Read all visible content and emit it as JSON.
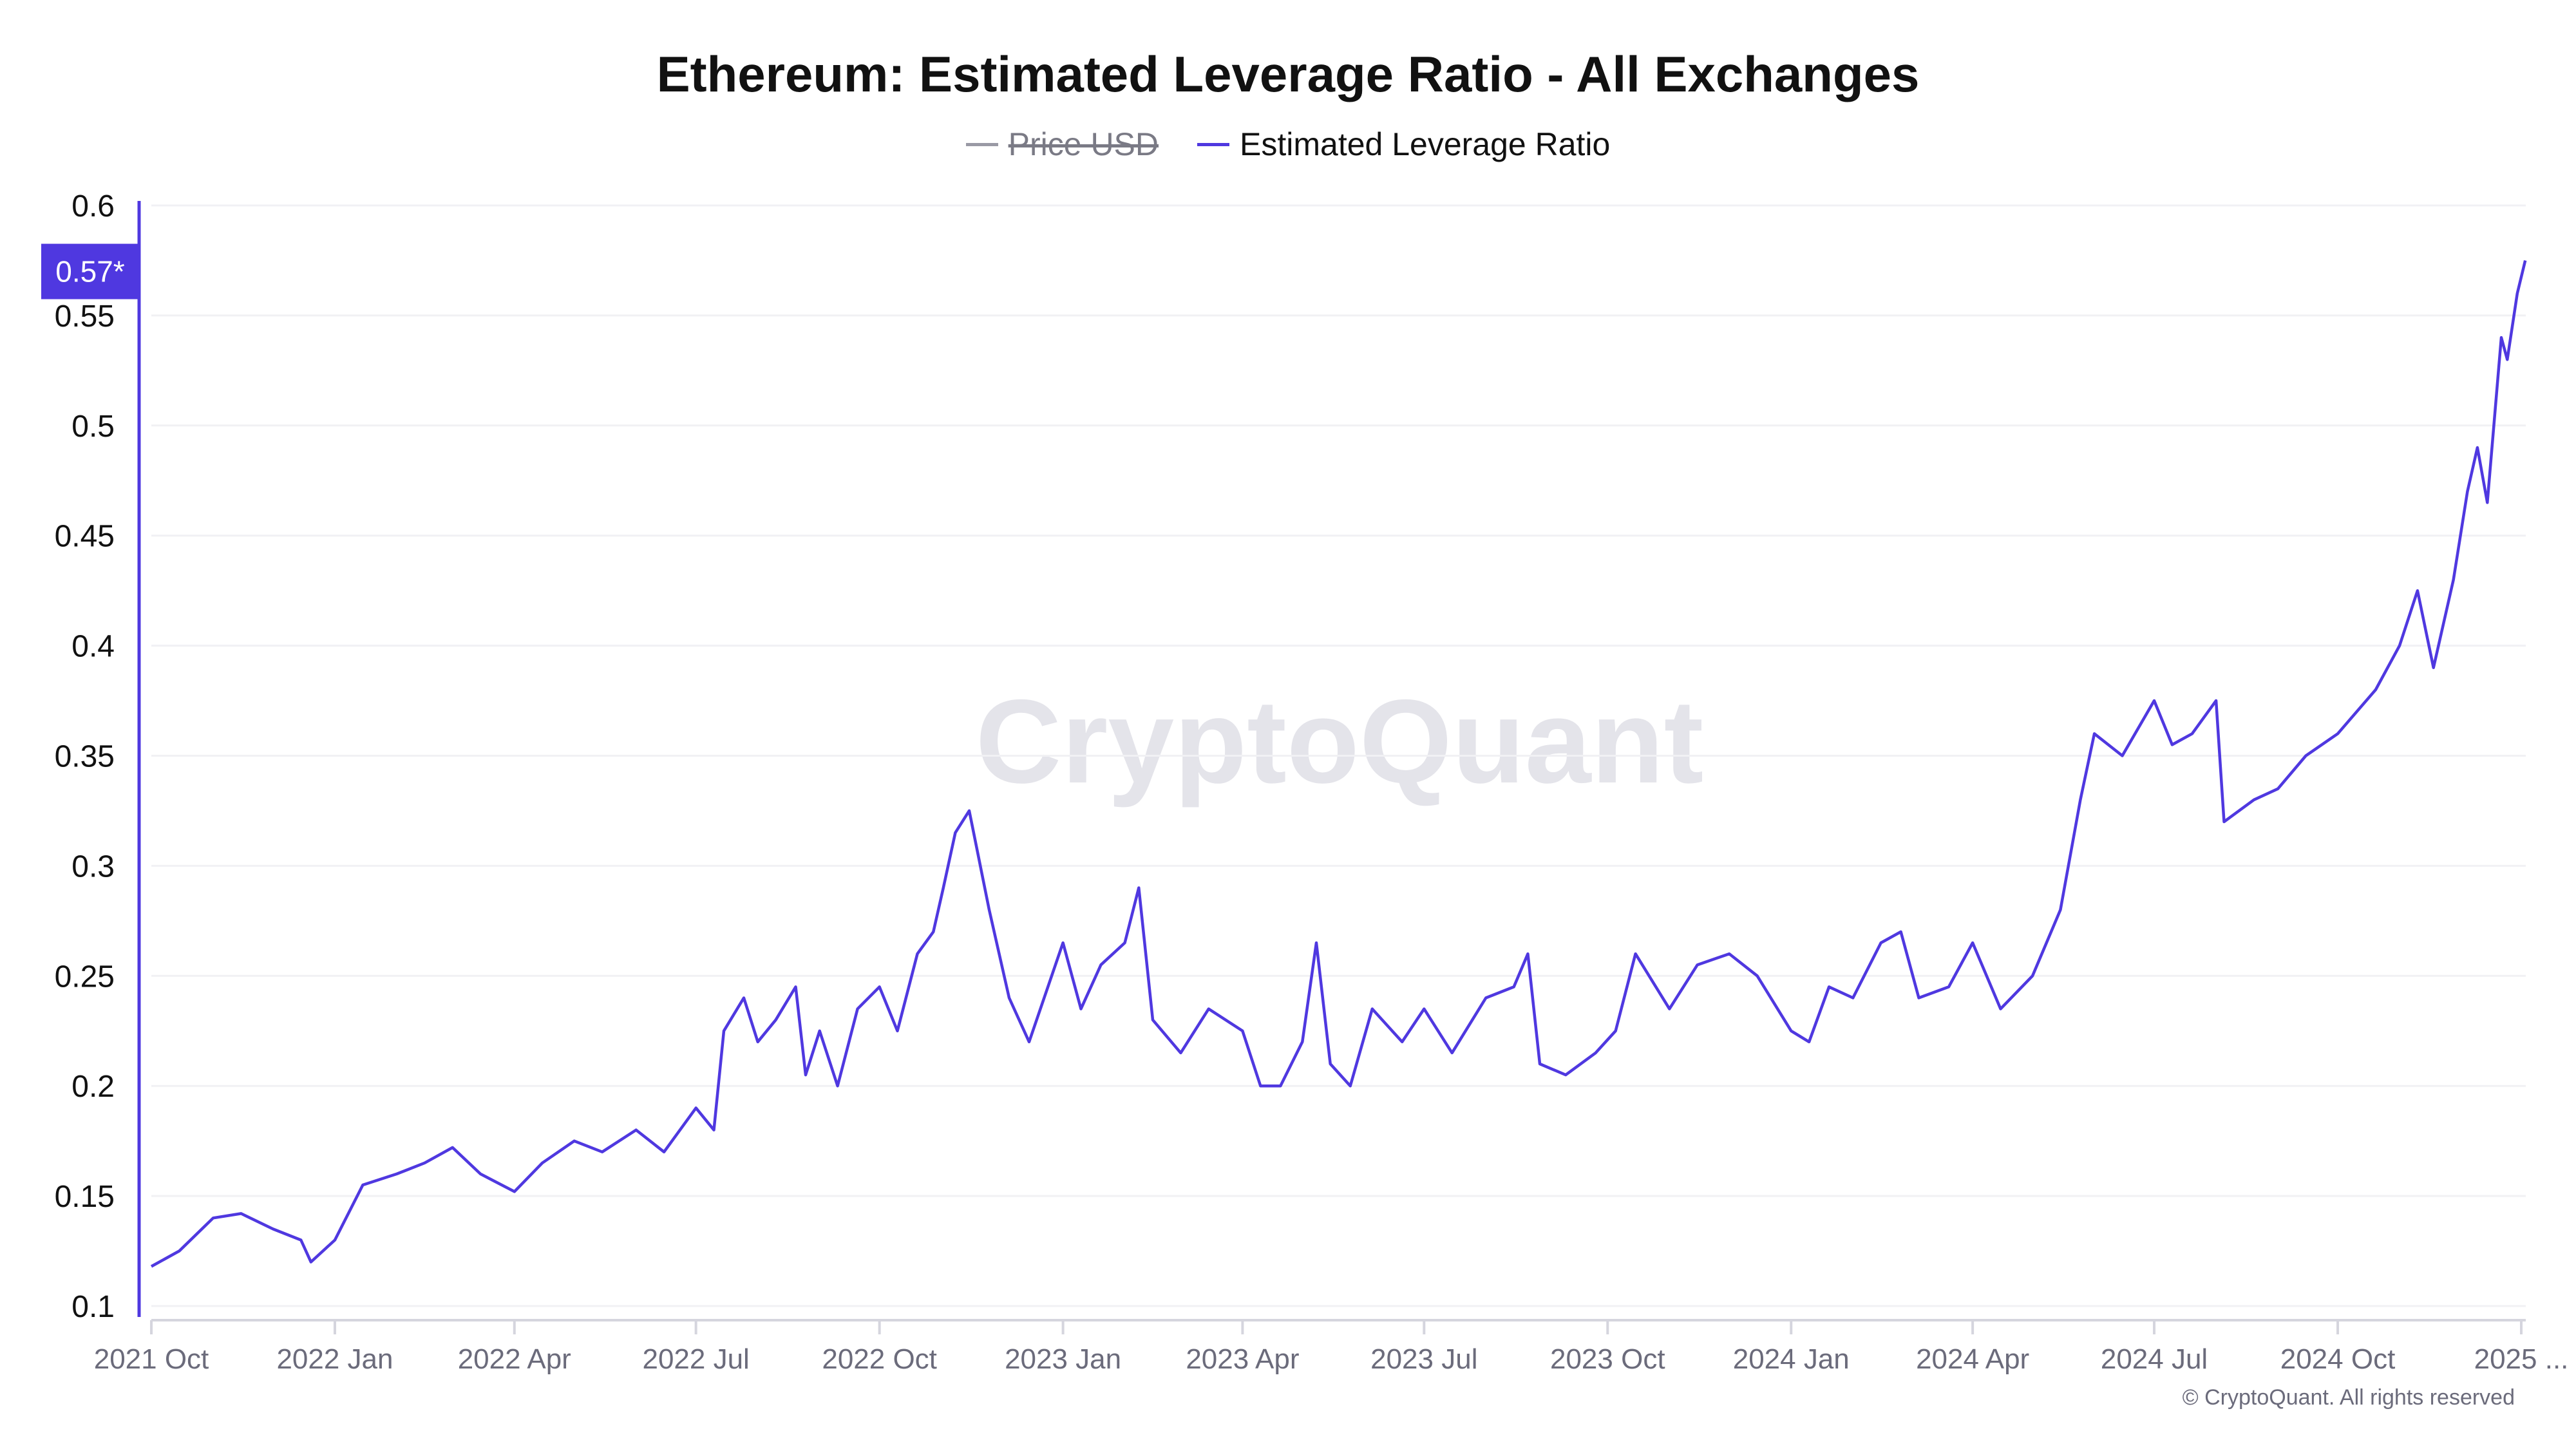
{
  "title": "Ethereum: Estimated Leverage Ratio - All Exchanges",
  "legend": [
    {
      "label": "Price USD",
      "color": "#9a9aa5",
      "hidden": true
    },
    {
      "label": "Estimated Leverage Ratio",
      "color": "#4f38e0",
      "hidden": false
    }
  ],
  "current_value_label": "0.57*",
  "watermark": "CryptoQuant",
  "copyright": "© CryptoQuant. All rights reserved",
  "chart_data": {
    "type": "line",
    "title": "Ethereum: Estimated Leverage Ratio - All Exchanges",
    "ylim": [
      0.1,
      0.6
    ],
    "yticks": [
      "0.1",
      "0.15",
      "0.2",
      "0.25",
      "0.3",
      "0.35",
      "0.4",
      "0.45",
      "0.5",
      "0.55",
      "0.6"
    ],
    "xticks": [
      {
        "label": "2021 Oct",
        "date": "2021-10-01"
      },
      {
        "label": "2022 Jan",
        "date": "2022-01-01"
      },
      {
        "label": "2022 Apr",
        "date": "2022-04-01"
      },
      {
        "label": "2022 Jul",
        "date": "2022-07-01"
      },
      {
        "label": "2022 Oct",
        "date": "2022-10-01"
      },
      {
        "label": "2023 Jan",
        "date": "2023-01-01"
      },
      {
        "label": "2023 Apr",
        "date": "2023-04-01"
      },
      {
        "label": "2023 Jul",
        "date": "2023-07-01"
      },
      {
        "label": "2023 Oct",
        "date": "2023-10-01"
      },
      {
        "label": "2024 Jan",
        "date": "2024-01-01"
      },
      {
        "label": "2024 Apr",
        "date": "2024-04-01"
      },
      {
        "label": "2024 Jul",
        "date": "2024-07-01"
      },
      {
        "label": "2024 Oct",
        "date": "2024-10-01"
      },
      {
        "label": "2025 ...",
        "date": "2025-01-01"
      }
    ],
    "xlim": [
      "2021-10-01",
      "2025-01-03"
    ],
    "grid": true,
    "legend_position": "top-center",
    "series": [
      {
        "name": "Estimated Leverage Ratio",
        "color": "#4f38e0",
        "x": [
          "2021-10-01",
          "2021-10-15",
          "2021-11-01",
          "2021-11-15",
          "2021-12-01",
          "2021-12-15",
          "2021-12-20",
          "2022-01-01",
          "2022-01-15",
          "2022-02-01",
          "2022-02-15",
          "2022-03-01",
          "2022-03-15",
          "2022-04-01",
          "2022-04-15",
          "2022-05-01",
          "2022-05-15",
          "2022-06-01",
          "2022-06-15",
          "2022-07-01",
          "2022-07-10",
          "2022-07-15",
          "2022-07-25",
          "2022-08-01",
          "2022-08-10",
          "2022-08-20",
          "2022-08-25",
          "2022-09-01",
          "2022-09-10",
          "2022-09-20",
          "2022-10-01",
          "2022-10-10",
          "2022-10-20",
          "2022-10-28",
          "2022-11-02",
          "2022-11-08",
          "2022-11-15",
          "2022-11-25",
          "2022-12-05",
          "2022-12-15",
          "2023-01-01",
          "2023-01-10",
          "2023-01-20",
          "2023-02-01",
          "2023-02-08",
          "2023-02-15",
          "2023-03-01",
          "2023-03-15",
          "2023-04-01",
          "2023-04-10",
          "2023-04-20",
          "2023-05-01",
          "2023-05-08",
          "2023-05-15",
          "2023-05-25",
          "2023-06-05",
          "2023-06-20",
          "2023-07-01",
          "2023-07-15",
          "2023-08-01",
          "2023-08-15",
          "2023-08-22",
          "2023-08-28",
          "2023-09-10",
          "2023-09-25",
          "2023-10-05",
          "2023-10-15",
          "2023-11-01",
          "2023-11-15",
          "2023-12-01",
          "2023-12-15",
          "2024-01-01",
          "2024-01-10",
          "2024-01-20",
          "2024-02-01",
          "2024-02-15",
          "2024-02-25",
          "2024-03-05",
          "2024-03-20",
          "2024-04-01",
          "2024-04-15",
          "2024-05-01",
          "2024-05-15",
          "2024-05-25",
          "2024-06-01",
          "2024-06-15",
          "2024-07-01",
          "2024-07-10",
          "2024-07-20",
          "2024-08-01",
          "2024-08-05",
          "2024-08-20",
          "2024-09-01",
          "2024-09-15",
          "2024-10-01",
          "2024-10-20",
          "2024-11-01",
          "2024-11-10",
          "2024-11-18",
          "2024-11-28",
          "2024-12-05",
          "2024-12-10",
          "2024-12-15",
          "2024-12-22",
          "2024-12-25",
          "2024-12-30",
          "2025-01-03"
        ],
        "y": [
          0.118,
          0.125,
          0.14,
          0.142,
          0.135,
          0.13,
          0.12,
          0.13,
          0.155,
          0.16,
          0.165,
          0.172,
          0.16,
          0.152,
          0.165,
          0.175,
          0.17,
          0.18,
          0.17,
          0.19,
          0.18,
          0.225,
          0.24,
          0.22,
          0.23,
          0.245,
          0.205,
          0.225,
          0.2,
          0.235,
          0.245,
          0.225,
          0.26,
          0.27,
          0.29,
          0.315,
          0.325,
          0.28,
          0.24,
          0.22,
          0.265,
          0.235,
          0.255,
          0.265,
          0.29,
          0.23,
          0.215,
          0.235,
          0.225,
          0.2,
          0.2,
          0.22,
          0.265,
          0.21,
          0.2,
          0.235,
          0.22,
          0.235,
          0.215,
          0.24,
          0.245,
          0.26,
          0.21,
          0.205,
          0.215,
          0.225,
          0.26,
          0.235,
          0.255,
          0.26,
          0.25,
          0.225,
          0.22,
          0.245,
          0.24,
          0.265,
          0.27,
          0.24,
          0.245,
          0.265,
          0.235,
          0.25,
          0.28,
          0.33,
          0.36,
          0.35,
          0.375,
          0.355,
          0.36,
          0.375,
          0.32,
          0.33,
          0.335,
          0.35,
          0.36,
          0.38,
          0.4,
          0.425,
          0.39,
          0.43,
          0.47,
          0.49,
          0.465,
          0.54,
          0.53,
          0.56,
          0.575
        ]
      }
    ]
  }
}
